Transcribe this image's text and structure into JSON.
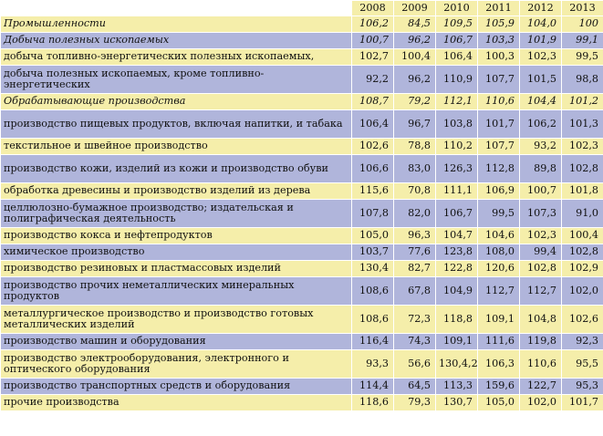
{
  "years": [
    "2008",
    "2009",
    "2010",
    "2011",
    "2012",
    "2013"
  ],
  "rows": [
    {
      "label": "Промышленности",
      "values": [
        "106,2",
        "84,5",
        "109,5",
        "105,9",
        "104,0",
        "100"
      ],
      "style": "yellow italic h1"
    },
    {
      "label": "Добыча полезных ископаемых",
      "values": [
        "100,7",
        "96,2",
        "106,7",
        "103,3",
        "101,9",
        "99,1"
      ],
      "style": "blue italic h1"
    },
    {
      "label": "добыча топливно-энергетических    полезных ископаемых,",
      "values": [
        "102,7",
        "100,4",
        "106,4",
        "100,3",
        "102,3",
        "99,5"
      ],
      "style": "yellow h1"
    },
    {
      "label": "добыча полезных ископаемых,   кроме топливно-энергетических",
      "values": [
        "92,2",
        "96,2",
        "110,9",
        "107,7",
        "101,5",
        "98,8"
      ],
      "style": "blue h2"
    },
    {
      "label": "Обрабатывающие производства",
      "values": [
        "108,7",
        "79,2",
        "112,1",
        "110,6",
        "104,4",
        "101,2"
      ],
      "style": "yellow italic h1"
    },
    {
      "label": "производство пищевых продуктов, включая напитки, и табака",
      "values": [
        "106,4",
        "96,7",
        "103,8",
        "101,7",
        "106,2",
        "101,3"
      ],
      "style": "blue h2"
    },
    {
      "label": "текстильное и швейное производство",
      "values": [
        "102,6",
        "78,8",
        "110,2",
        "107,7",
        "93,2",
        "102,3"
      ],
      "style": "yellow h1"
    },
    {
      "label": "производство кожи, изделий из кожи и производство обуви",
      "values": [
        "106,6",
        "83,0",
        "126,3",
        "112,8",
        "89,8",
        "102,8"
      ],
      "style": "blue h2"
    },
    {
      "label": "обработка древесины и производство изделий из дерева",
      "values": [
        "115,6",
        "70,8",
        "111,1",
        "106,9",
        "100,7",
        "101,8"
      ],
      "style": "yellow h1"
    },
    {
      "label": "целлюлозно-бумажное производство; издательская и полиграфическая деятельность",
      "values": [
        "107,8",
        "82,0",
        "106,7",
        "99,5",
        "107,3",
        "91,0"
      ],
      "style": "blue h2"
    },
    {
      "label": "производство кокса и нефтепродуктов",
      "values": [
        "105,0",
        "96,3",
        "104,7",
        "104,6",
        "102,3",
        "100,4"
      ],
      "style": "yellow h1"
    },
    {
      "label": "химическое производство",
      "values": [
        "103,7",
        "77,6",
        "123,8",
        "108,0",
        "99,4",
        "102,8"
      ],
      "style": "blue h1"
    },
    {
      "label": "производство резиновых и пластмассовых изделий",
      "values": [
        "130,4",
        "82,7",
        "122,8",
        "120,6",
        "102,8",
        "102,9"
      ],
      "style": "yellow h1"
    },
    {
      "label": "производство прочих неметаллических минеральных продуктов",
      "values": [
        "108,6",
        "67,8",
        "104,9",
        "112,7",
        "112,7",
        "102,0"
      ],
      "style": "blue h2"
    },
    {
      "label": "металлургическое производство и производство готовых металлических изделий",
      "values": [
        "108,6",
        "72,3",
        "118,8",
        "109,1",
        "104,8",
        "102,6"
      ],
      "style": "yellow h2"
    },
    {
      "label": "производство машин и оборудования",
      "values": [
        "116,4",
        "74,3",
        "109,1",
        "111,6",
        "119,8",
        "92,3"
      ],
      "style": "blue h1"
    },
    {
      "label": "производство электрооборудования, электронного и оптического оборудования",
      "values": [
        "93,3",
        "56,6",
        "130,4,2",
        "106,3",
        "110,6",
        "95,5"
      ],
      "style": "yellow h2"
    },
    {
      "label": "производство транспортных средств и оборудования",
      "values": [
        "114,4",
        "64,5",
        "113,3",
        "159,6",
        "122,7",
        "95,3"
      ],
      "style": "blue h1"
    },
    {
      "label": "прочие производства",
      "values": [
        "118,6",
        "79,3",
        "130,7",
        "105,0",
        "102,0",
        "101,7"
      ],
      "style": "yellow h1"
    }
  ]
}
